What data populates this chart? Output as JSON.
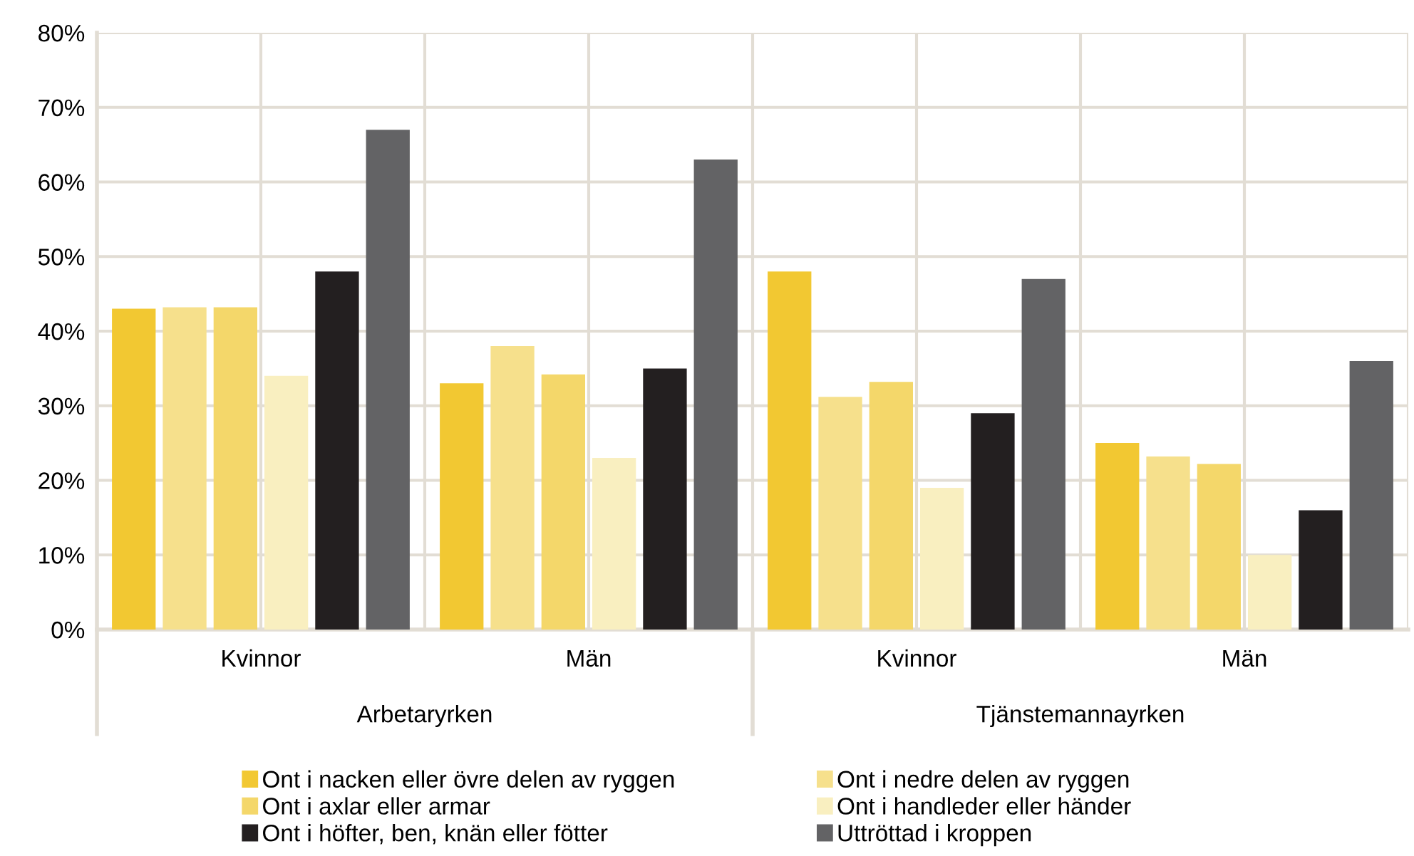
{
  "chart_data": {
    "type": "bar",
    "categories": [
      "Kvinnor",
      "Män",
      "Kvinnor",
      "Män"
    ],
    "annotations": [
      "Arbetaryrken",
      "Tjänstemannayrken"
    ],
    "series": [
      {
        "name": "Ont i nacken eller övre delen av ryggen",
        "color": "#f2c832",
        "values": [
          43,
          33,
          48,
          25
        ]
      },
      {
        "name": "Ont i nedre delen av ryggen",
        "color": "#f6e08c",
        "values": [
          43.2,
          38,
          31.2,
          23.2
        ]
      },
      {
        "name": "Ont i axlar eller armar",
        "color": "#f4d76a",
        "values": [
          43.2,
          34.2,
          33.2,
          22.2
        ]
      },
      {
        "name": "Ont i handleder eller händer",
        "color": "#f9efc0",
        "values": [
          34,
          23,
          19,
          10
        ]
      },
      {
        "name": "Ont i höfter, ben, knän eller fötter",
        "color": "#231f20",
        "values": [
          48,
          35,
          29,
          16
        ]
      },
      {
        "name": "Uttröttad i kroppen",
        "color": "#636365",
        "values": [
          67,
          63,
          47,
          36
        ]
      }
    ],
    "ylim": [
      0,
      80
    ],
    "yticks": [
      {
        "value": 0,
        "label": "0%"
      },
      {
        "value": 10,
        "label": "10%"
      },
      {
        "value": 20,
        "label": "20%"
      },
      {
        "value": 30,
        "label": "30%"
      },
      {
        "value": 40,
        "label": "40%"
      },
      {
        "value": 50,
        "label": "50%"
      },
      {
        "value": 60,
        "label": "60%"
      },
      {
        "value": 70,
        "label": "70%"
      },
      {
        "value": 80,
        "label": "80%"
      }
    ],
    "grid": true,
    "legend": "bottom"
  }
}
